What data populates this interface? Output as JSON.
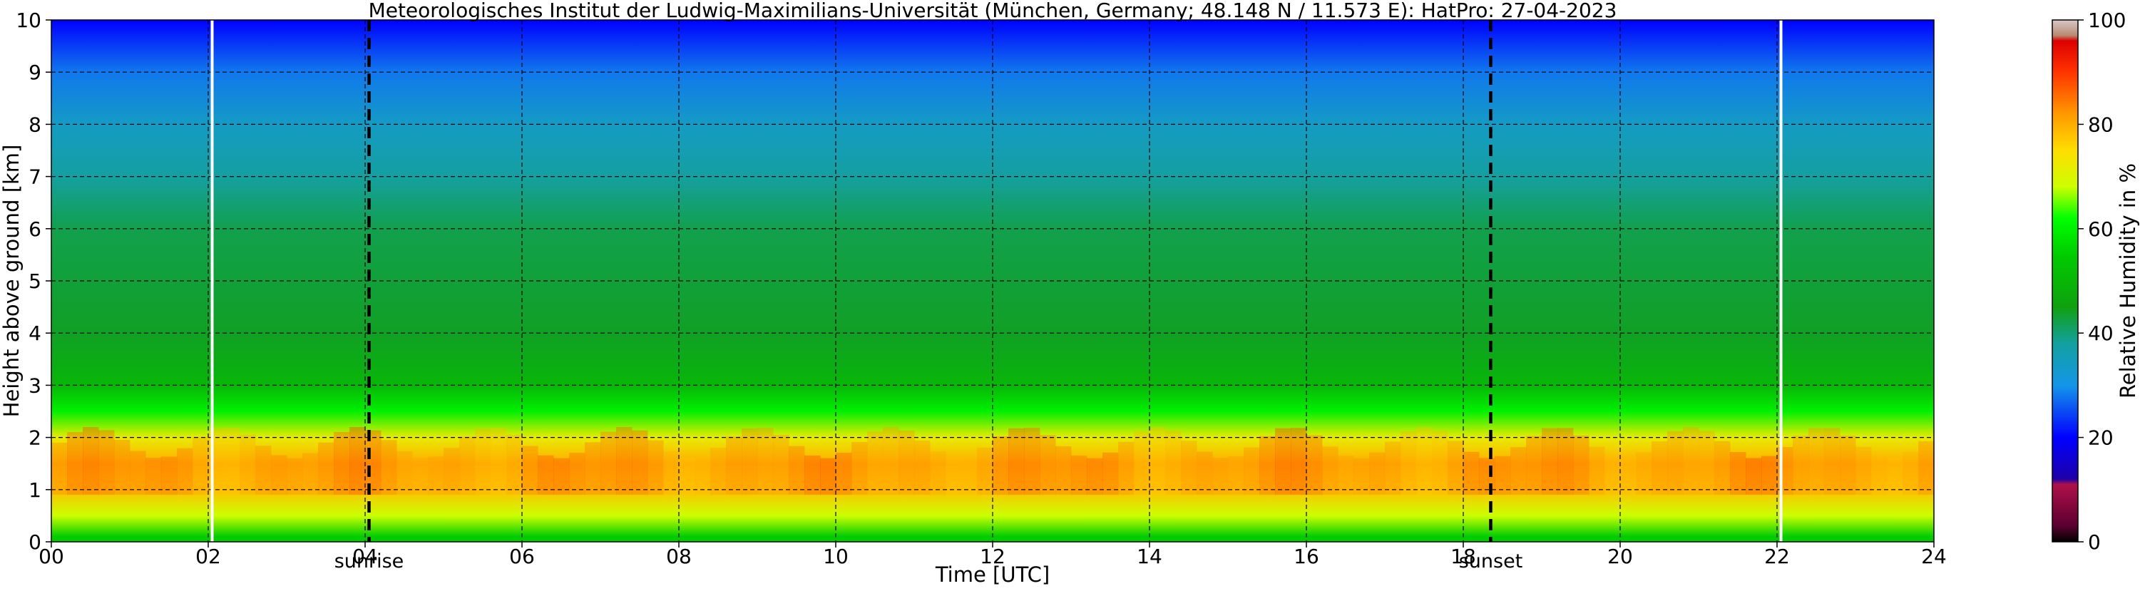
{
  "chart_data": {
    "type": "heatmap",
    "title": "Meteorologisches Institut der Ludwig-Maximilians-Universität (München, Germany; 48.148 N / 11.573 E):    HatPro: 27-04-2023",
    "xlabel": "Time [UTC]",
    "ylabel": "Height above ground [km]",
    "xlim": [
      0,
      24
    ],
    "ylim": [
      0,
      10
    ],
    "x_ticks": [
      0,
      2,
      4,
      6,
      8,
      10,
      12,
      14,
      16,
      18,
      20,
      22,
      24
    ],
    "x_tick_labels": [
      "00",
      "02",
      "04",
      "06",
      "08",
      "10",
      "12",
      "14",
      "16",
      "18",
      "20",
      "22",
      "24"
    ],
    "y_ticks": [
      0,
      1,
      2,
      3,
      4,
      5,
      6,
      7,
      8,
      9,
      10
    ],
    "y_tick_labels": [
      "0",
      "1",
      "2",
      "3",
      "4",
      "5",
      "6",
      "7",
      "8",
      "9",
      "10"
    ],
    "grid": true,
    "colorbar": {
      "label": "Relative Humidity in %",
      "range": [
        0,
        100
      ],
      "ticks": [
        0,
        20,
        40,
        60,
        80,
        100
      ],
      "tick_labels": [
        "0",
        "20",
        "40",
        "60",
        "80",
        "100"
      ],
      "colors": [
        {
          "value": 0,
          "color": "#000000"
        },
        {
          "value": 3,
          "color": "#5a0030"
        },
        {
          "value": 11,
          "color": "#b0104a"
        },
        {
          "value": 12,
          "color": "#1e00a8"
        },
        {
          "value": 20,
          "color": "#0000ff"
        },
        {
          "value": 30,
          "color": "#1496e8"
        },
        {
          "value": 38,
          "color": "#14a0a0"
        },
        {
          "value": 45,
          "color": "#10a010"
        },
        {
          "value": 55,
          "color": "#00cc00"
        },
        {
          "value": 62,
          "color": "#00ff00"
        },
        {
          "value": 68,
          "color": "#ccff00"
        },
        {
          "value": 75,
          "color": "#ffdd00"
        },
        {
          "value": 82,
          "color": "#ff9900"
        },
        {
          "value": 90,
          "color": "#ff3300"
        },
        {
          "value": 96,
          "color": "#dd0000"
        },
        {
          "value": 97,
          "color": "#b88870"
        },
        {
          "value": 100,
          "color": "#d8c8c8"
        }
      ]
    },
    "annotations": [
      {
        "text": "sunrise",
        "x": 4.05,
        "style": "dashed-line"
      },
      {
        "text": "sunset",
        "x": 18.35,
        "style": "dashed-line"
      }
    ],
    "data_gaps": [
      2.05,
      22.05
    ],
    "profiles": [
      {
        "height_km": 0.1,
        "rh": 55
      },
      {
        "height_km": 0.5,
        "rh": 68
      },
      {
        "height_km": 1.0,
        "rh": 78
      },
      {
        "height_km": 1.5,
        "rh": 80
      },
      {
        "height_km": 2.0,
        "rh": 72
      },
      {
        "height_km": 2.5,
        "rh": 60
      },
      {
        "height_km": 3.0,
        "rh": 50
      },
      {
        "height_km": 4.0,
        "rh": 44
      },
      {
        "height_km": 5.0,
        "rh": 43
      },
      {
        "height_km": 6.0,
        "rh": 42
      },
      {
        "height_km": 7.0,
        "rh": 38
      },
      {
        "height_km": 8.0,
        "rh": 34
      },
      {
        "height_km": 9.0,
        "rh": 28
      },
      {
        "height_km": 10.0,
        "rh": 20
      }
    ]
  }
}
